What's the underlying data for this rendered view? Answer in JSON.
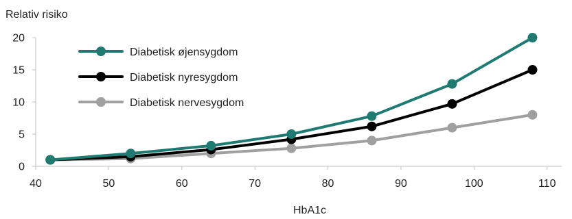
{
  "chart_data": {
    "type": "line",
    "title": "",
    "xlabel": "HbA1c",
    "ylabel": "Relativ risiko",
    "xlim": [
      40,
      112
    ],
    "ylim": [
      0,
      20
    ],
    "xticks": [
      40,
      50,
      60,
      70,
      80,
      90,
      100,
      110
    ],
    "yticks": [
      0,
      5,
      10,
      15,
      20
    ],
    "grid": false,
    "legend": "top-left",
    "x": [
      42,
      53,
      64,
      75,
      86,
      97,
      108
    ],
    "series": [
      {
        "name": "Diabetisk øjensygdom",
        "color": "#1f7a72",
        "values": [
          1,
          2,
          3.2,
          5,
          7.8,
          12.8,
          20
        ]
      },
      {
        "name": "Diabetisk nyresygdom",
        "color": "#000000",
        "values": [
          1,
          1.5,
          2.6,
          4.2,
          6.2,
          9.7,
          15
        ]
      },
      {
        "name": "Diabetisk nervesygdom",
        "color": "#a0a0a0",
        "values": [
          1,
          1.2,
          2,
          2.8,
          4,
          6,
          8
        ]
      }
    ]
  }
}
